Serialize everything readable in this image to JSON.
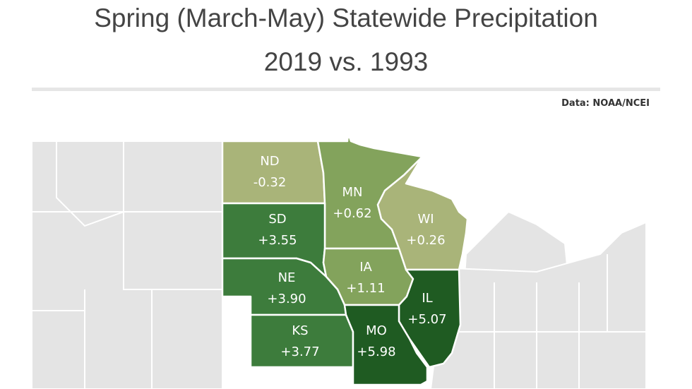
{
  "title": "Spring (March-May) Statewide Precipitation",
  "subtitle": "2019 vs. 1993",
  "source": "Data: NOAA/NCEI",
  "colors": {
    "background_states": "#e4e4e4",
    "state_borders": "#ffffff",
    "low_change": "#a9b479",
    "mid_change": "#83a35c",
    "high_change": "#3d7c3c",
    "highest_change": "#1f5b22"
  },
  "states": [
    {
      "abbr": "ND",
      "value": "-0.32",
      "color": "#a9b479"
    },
    {
      "abbr": "MN",
      "value": "+0.62",
      "color": "#83a35c"
    },
    {
      "abbr": "WI",
      "value": "+0.26",
      "color": "#a9b479"
    },
    {
      "abbr": "SD",
      "value": "+3.55",
      "color": "#3d7c3c"
    },
    {
      "abbr": "IA",
      "value": "+1.11",
      "color": "#83a35c"
    },
    {
      "abbr": "NE",
      "value": "+3.90",
      "color": "#3d7c3c"
    },
    {
      "abbr": "IL",
      "value": "+5.07",
      "color": "#1f5b22"
    },
    {
      "abbr": "KS",
      "value": "+3.77",
      "color": "#3d7c3c"
    },
    {
      "abbr": "MO",
      "value": "+5.98",
      "color": "#1f5b22"
    }
  ]
}
